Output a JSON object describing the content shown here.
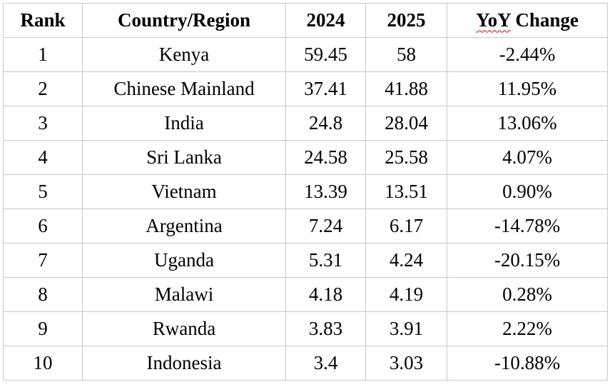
{
  "table": {
    "columns": {
      "rank": "Rank",
      "country": "Country/Region",
      "y2024": "2024",
      "y2025": "2025",
      "yoy_word": "YoY",
      "yoy_rest": " Change"
    },
    "rows": [
      {
        "rank": "1",
        "country": "Kenya",
        "y2024": "59.45",
        "y2025": "58",
        "yoy": "-2.44%"
      },
      {
        "rank": "2",
        "country": "Chinese Mainland",
        "y2024": "37.41",
        "y2025": "41.88",
        "yoy": "11.95%"
      },
      {
        "rank": "3",
        "country": "India",
        "y2024": "24.8",
        "y2025": "28.04",
        "yoy": "13.06%"
      },
      {
        "rank": "4",
        "country": "Sri Lanka",
        "y2024": "24.58",
        "y2025": "25.58",
        "yoy": "4.07%"
      },
      {
        "rank": "5",
        "country": "Vietnam",
        "y2024": "13.39",
        "y2025": "13.51",
        "yoy": "0.90%"
      },
      {
        "rank": "6",
        "country": "Argentina",
        "y2024": "7.24",
        "y2025": "6.17",
        "yoy": "-14.78%"
      },
      {
        "rank": "7",
        "country": "Uganda",
        "y2024": "5.31",
        "y2025": "4.24",
        "yoy": "-20.15%"
      },
      {
        "rank": "8",
        "country": "Malawi",
        "y2024": "4.18",
        "y2025": "4.19",
        "yoy": "0.28%"
      },
      {
        "rank": "9",
        "country": "Rwanda",
        "y2024": "3.83",
        "y2025": "3.91",
        "yoy": "2.22%"
      },
      {
        "rank": "10",
        "country": "Indonesia",
        "y2024": "3.4",
        "y2025": "3.03",
        "yoy": "-10.88%"
      }
    ],
    "colors": {
      "border": "#c8c8c8",
      "text": "#000000",
      "spellcheck_underline": "#e00000",
      "background": "#ffffff"
    }
  }
}
